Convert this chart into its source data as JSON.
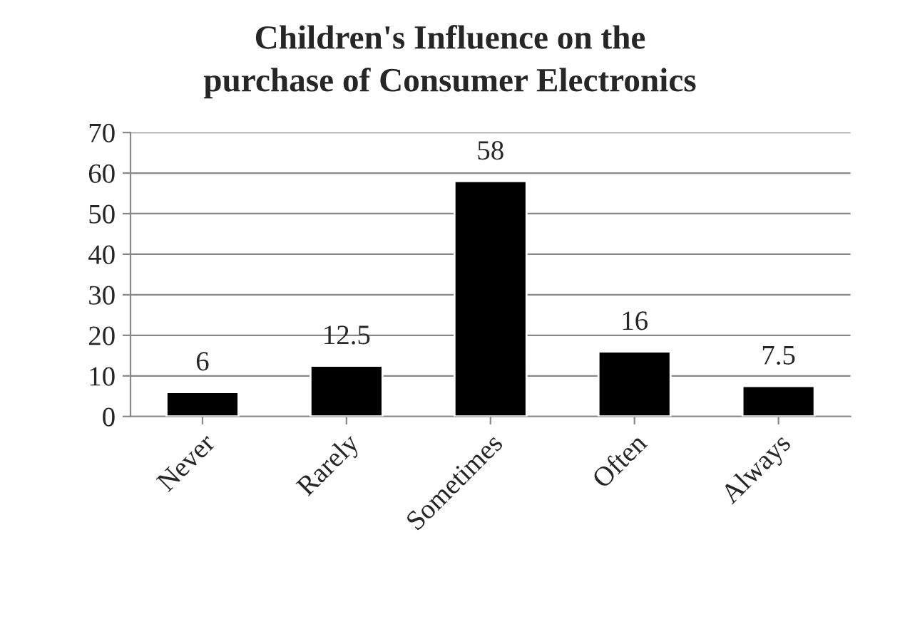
{
  "chart_data": {
    "type": "bar",
    "title": "Children's Influence on the\npurchase of Consumer Electronics",
    "categories": [
      "Never",
      "Rarely",
      "Sometimes",
      "Often",
      "Always"
    ],
    "values": [
      6,
      12.5,
      58,
      16,
      7.5
    ],
    "color": "#000000",
    "ylim": [
      0,
      70
    ],
    "yticks": [
      0,
      10,
      20,
      30,
      40,
      50,
      60,
      70
    ],
    "grid": "y",
    "data_labels": true
  }
}
